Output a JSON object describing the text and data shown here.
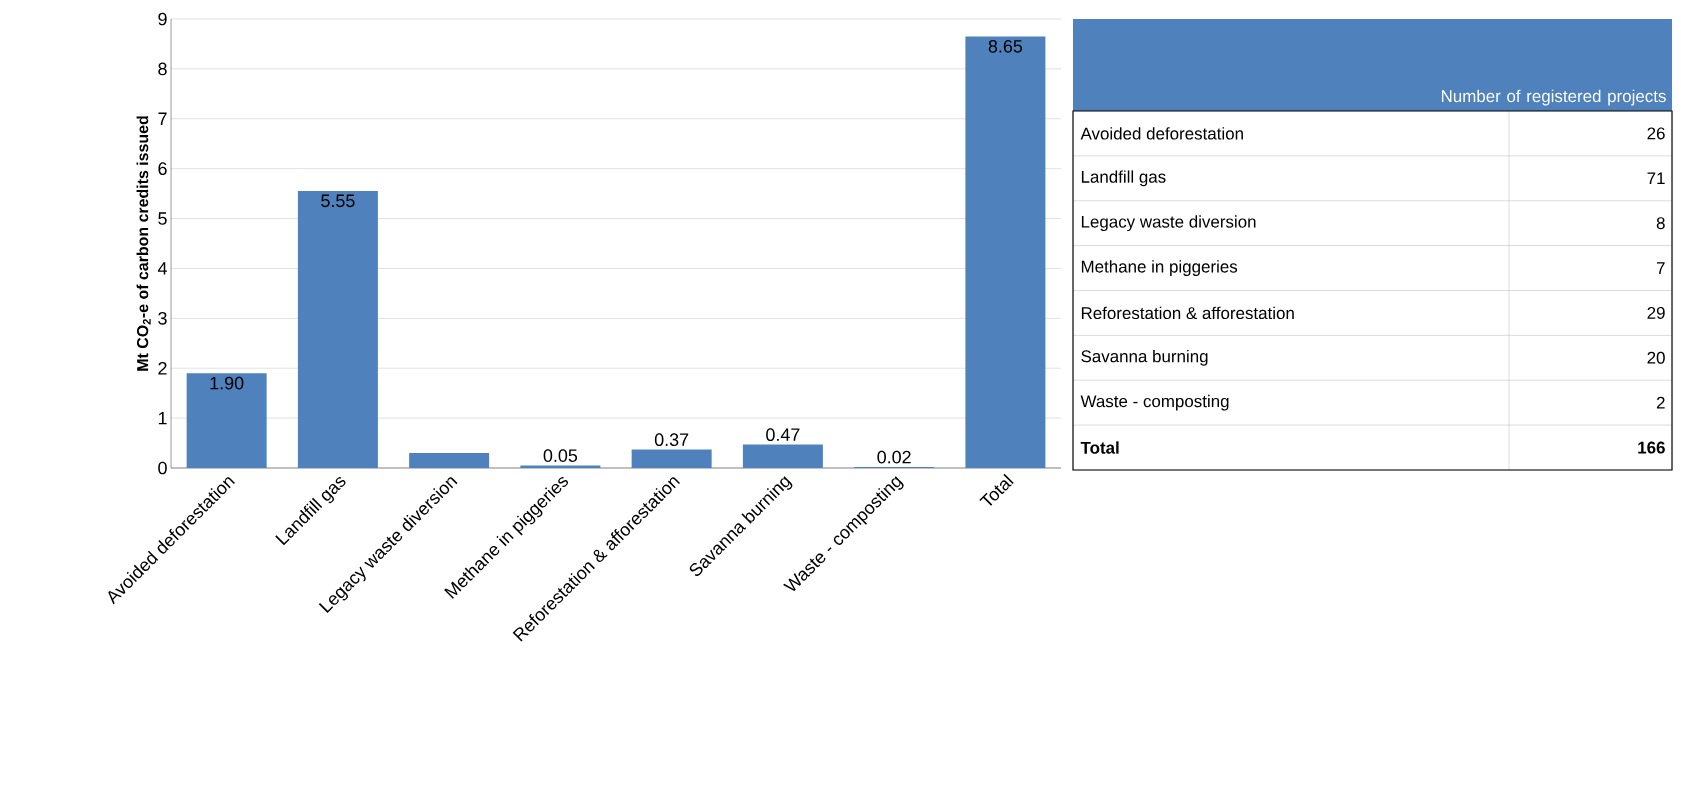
{
  "chart_data": [
    {
      "type": "bar",
      "ylabel": "Mt CO$_{2}$-e of carbon credits issued",
      "categories": [
        "Avoided deforestation",
        "Landfill gas",
        "Legacy waste diversion",
        "Methane in piggeries",
        "Reforestation & afforestation",
        "Savanna burning",
        "Waste - composting",
        "Total"
      ],
      "values": [
        1.9,
        5.55,
        0.3,
        0.05,
        0.37,
        0.47,
        0.02,
        8.65
      ],
      "value_labels": [
        "1.90",
        "5.55",
        null,
        "0.05",
        "0.37",
        "0.47",
        "0.02",
        "8.65"
      ],
      "color": "#4f81bd",
      "ylim": [
        0,
        9
      ],
      "yticks": [
        0,
        1,
        2,
        3,
        4,
        5,
        6,
        7,
        8,
        9
      ],
      "grid": "y"
    },
    {
      "type": "other",
      "title": "Number of registered projects",
      "categories": [
        "Avoided deforestation",
        "Landfill gas",
        "Legacy waste diversion",
        "Methane in piggeries",
        "Reforestation & afforestation",
        "Savanna burning",
        "Waste - composting",
        "Total"
      ],
      "values": [
        26,
        71,
        8,
        7,
        29,
        20,
        2,
        166
      ],
      "data_labels": true
    }
  ]
}
